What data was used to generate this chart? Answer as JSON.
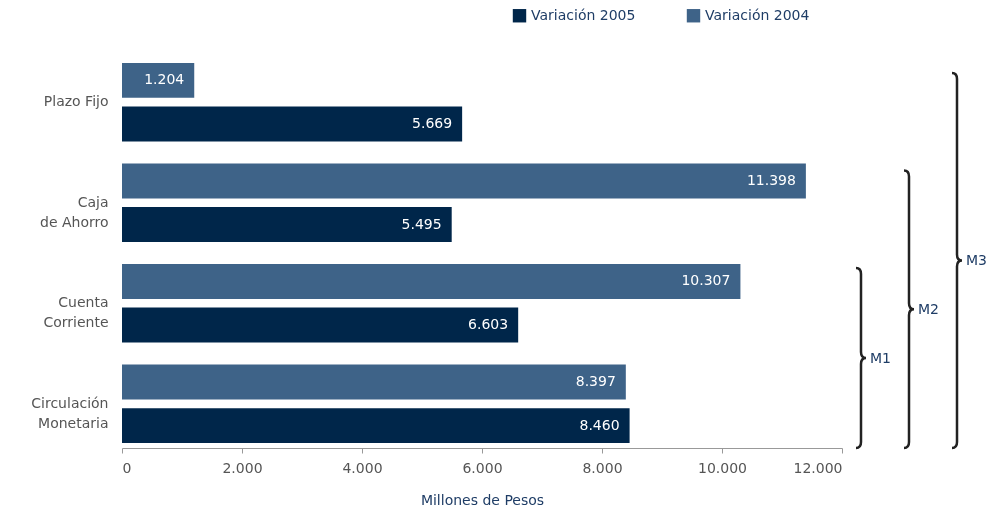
{
  "chart_data": {
    "type": "bar",
    "orientation": "horizontal",
    "xlabel": "Millones de Pesos",
    "categories": [
      "Plazo Fijo",
      "Caja\nde Ahorro",
      "Cuenta\nCorriente",
      "Circulación\nMonetaria"
    ],
    "series": [
      {
        "name": "Variación 2005",
        "color": "#00264a",
        "values": [
          5669,
          5495,
          6603,
          8460
        ],
        "value_labels": [
          "5.669",
          "5.495",
          "6.603",
          "8.460"
        ]
      },
      {
        "name": "Variación 2004",
        "color": "#3e6388",
        "values": [
          1204,
          11398,
          10307,
          8397
        ],
        "value_labels": [
          "1.204",
          "11.398",
          "10.307",
          "8.397"
        ]
      }
    ],
    "xlim": [
      0,
      12000
    ],
    "xticks": [
      0,
      {
        "value": 2000,
        "label": "2.000"
      },
      {
        "value": 4000,
        "label": "4.000"
      },
      {
        "value": 6000,
        "label": "6.000"
      },
      {
        "value": 8000,
        "label": "8.000"
      },
      {
        "value": 10000,
        "label": "10.000"
      },
      {
        "value": 12000,
        "label": "12.000"
      }
    ],
    "grid": false,
    "legend": "top right",
    "annotations": [
      "M1",
      "M2",
      "M3"
    ]
  }
}
